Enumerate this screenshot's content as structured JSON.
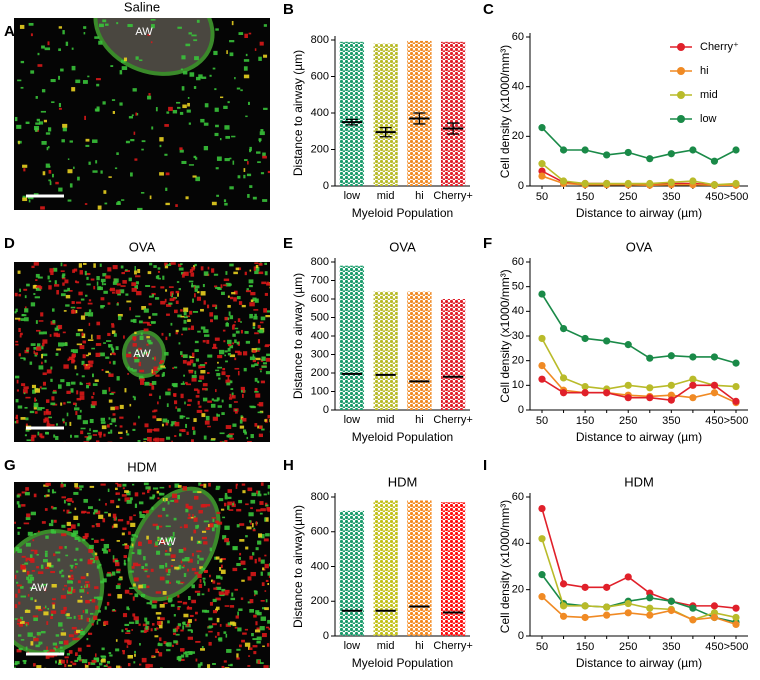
{
  "images": [
    {
      "label": "A",
      "title": "Saline",
      "airways": [
        "AW"
      ]
    },
    {
      "label": "D",
      "title": "OVA",
      "airways": [
        "AW"
      ]
    },
    {
      "label": "G",
      "title": "HDM",
      "airways": [
        "AW",
        "AW"
      ]
    }
  ],
  "chart_data": [
    {
      "type": "strip",
      "label": "B",
      "categories": [
        "low",
        "mid",
        "hi",
        "Cherry+"
      ],
      "colors": [
        "#1a9b6b",
        "#b9bb2a",
        "#f08a24",
        "#e0202a"
      ],
      "values": [
        350,
        295,
        370,
        315
      ],
      "errors": [
        15,
        25,
        30,
        30
      ],
      "ranges": [
        [
          0,
          790
        ],
        [
          0,
          780
        ],
        [
          0,
          795
        ],
        [
          0,
          790
        ]
      ],
      "ylim": [
        0,
        800
      ],
      "yticks": [
        0,
        200,
        400,
        600,
        800
      ],
      "xlabel": "Myeloid Population",
      "ylabel": "Distance to airway (µm)"
    },
    {
      "type": "line",
      "label": "C",
      "categories": [
        "50",
        null,
        "150",
        null,
        "250",
        null,
        "350",
        null,
        "450",
        ">500"
      ],
      "series": [
        {
          "name": "Cherry⁺",
          "color": "#e0202a",
          "values": [
            6,
            1.5,
            1,
            1,
            0.5,
            0.5,
            1,
            1,
            0.5,
            0.5
          ]
        },
        {
          "name": "hi",
          "color": "#f08a24",
          "values": [
            4,
            1,
            0.5,
            0.5,
            0.5,
            0.3,
            0.5,
            0.5,
            0.3,
            0.3
          ]
        },
        {
          "name": "mid",
          "color": "#b9bb2a",
          "values": [
            9,
            2,
            1,
            1,
            1,
            1,
            1.5,
            2,
            0.5,
            1
          ]
        },
        {
          "name": "low",
          "color": "#1a8a48",
          "values": [
            23.5,
            14.5,
            14.5,
            12.5,
            13.5,
            11,
            13,
            14.5,
            10,
            14.5
          ]
        }
      ],
      "ylim": [
        0,
        60
      ],
      "yticks": [
        0,
        20,
        40,
        60
      ],
      "legend": "upper right",
      "xlabel": "Distance to airway (µm)",
      "ylabel": "Cell density  (x1000/mm³)"
    },
    {
      "type": "strip",
      "label": "E",
      "title": "OVA",
      "categories": [
        "low",
        "mid",
        "hi",
        "Cherry+"
      ],
      "colors": [
        "#1a9b6b",
        "#b9bb2a",
        "#f08a24",
        "#e0202a"
      ],
      "values": [
        195,
        190,
        155,
        180
      ],
      "ranges": [
        [
          0,
          780
        ],
        [
          0,
          640
        ],
        [
          0,
          640
        ],
        [
          0,
          600
        ]
      ],
      "ylim": [
        0,
        800
      ],
      "yticks": [
        0,
        100,
        200,
        300,
        400,
        500,
        600,
        700,
        800
      ],
      "xlabel": "Myeloid Population",
      "ylabel": "Distance to airway (µm)"
    },
    {
      "type": "line",
      "label": "F",
      "title": "OVA",
      "categories": [
        "50",
        null,
        "150",
        null,
        "250",
        null,
        "350",
        null,
        "450",
        ">500"
      ],
      "series": [
        {
          "name": "low",
          "color": "#1a8a48",
          "values": [
            47,
            33,
            29,
            28,
            26.5,
            21,
            22,
            21.5,
            21.5,
            19
          ]
        },
        {
          "name": "mid",
          "color": "#b9bb2a",
          "values": [
            29,
            13,
            9.5,
            8.5,
            10,
            9,
            10,
            12.5,
            10,
            9.5
          ]
        },
        {
          "name": "hi",
          "color": "#f08a24",
          "values": [
            18,
            8,
            7,
            7,
            6,
            5.5,
            6,
            5,
            7,
            3
          ]
        },
        {
          "name": "Cherry⁺",
          "color": "#e0202a",
          "values": [
            12.5,
            7,
            7,
            7,
            5,
            5,
            4,
            10,
            10,
            3.5
          ]
        }
      ],
      "ylim": [
        0,
        60
      ],
      "yticks": [
        0,
        10,
        20,
        30,
        40,
        50,
        60
      ],
      "xlabel": "Distance to airway (µm)",
      "ylabel": "Cell density  (x1000/mm³)"
    },
    {
      "type": "strip",
      "label": "H",
      "title": "HDM",
      "categories": [
        "low",
        "mid",
        "hi",
        "Cherry+"
      ],
      "colors": [
        "#1a9b6b",
        "#c3c11c",
        "#f58a1f",
        "#ff1010"
      ],
      "values": [
        145,
        145,
        170,
        135
      ],
      "ranges": [
        [
          0,
          720
        ],
        [
          0,
          780
        ],
        [
          0,
          780
        ],
        [
          0,
          770
        ]
      ],
      "ylim": [
        0,
        800
      ],
      "yticks": [
        0,
        200,
        400,
        600,
        800
      ],
      "xlabel": "Myeloid Population",
      "ylabel": "Distance to airway(µm)"
    },
    {
      "type": "line",
      "label": "I",
      "title": "HDM",
      "categories": [
        "50",
        null,
        "150",
        null,
        "250",
        null,
        "350",
        null,
        "450",
        ">500"
      ],
      "series": [
        {
          "name": "Cherry⁺",
          "color": "#e0202a",
          "values": [
            55,
            22.5,
            21,
            21,
            25.5,
            18.5,
            15,
            13,
            13,
            12
          ]
        },
        {
          "name": "low",
          "color": "#1a8a48",
          "values": [
            26.5,
            14,
            13,
            12.5,
            15,
            16.5,
            15,
            12,
            8,
            6
          ]
        },
        {
          "name": "mid",
          "color": "#b9bb2a",
          "values": [
            42,
            13,
            13,
            12.5,
            14,
            12,
            11.5,
            7,
            10,
            8
          ]
        },
        {
          "name": "hi",
          "color": "#f08a24",
          "values": [
            17,
            8.5,
            8,
            9,
            10,
            9,
            11,
            7,
            8,
            5
          ]
        }
      ],
      "ylim": [
        0,
        60
      ],
      "yticks": [
        0,
        20,
        40,
        60
      ],
      "xlabel": "Distance to airway (µm)",
      "ylabel": "Cell density  (x1000/mm³)"
    }
  ]
}
